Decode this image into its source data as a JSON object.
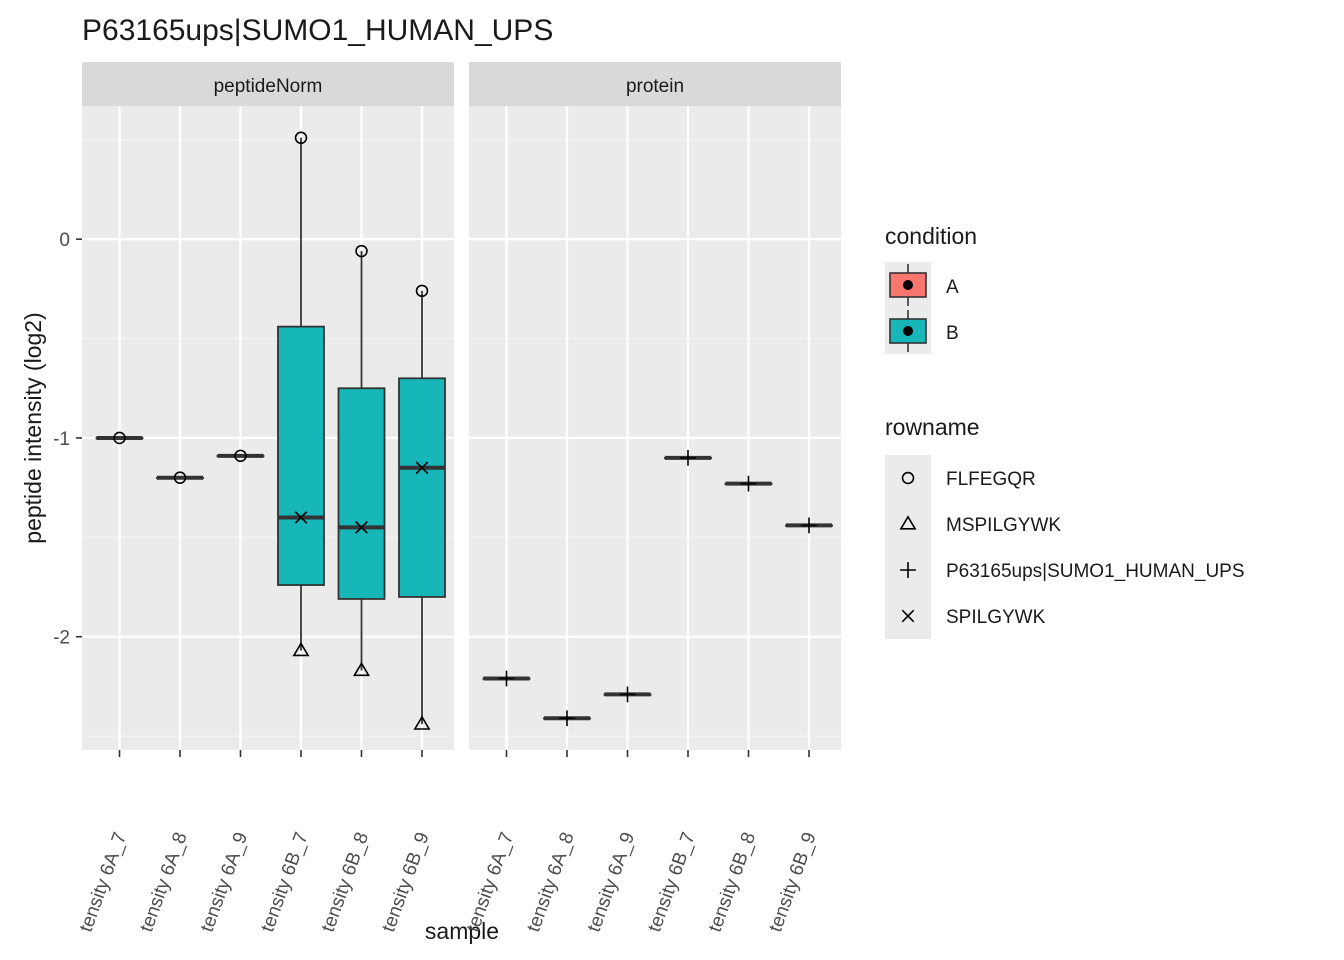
{
  "chart_data": {
    "type": "boxplot",
    "title": "P63165ups|SUMO1_HUMAN_UPS",
    "xlabel": "sample",
    "ylabel": "peptide intensity (log2)",
    "y_ticks": [
      {
        "value": 0,
        "label": "0"
      },
      {
        "value": -1,
        "label": "-1"
      },
      {
        "value": -2,
        "label": "-2"
      }
    ],
    "ylim": [
      -2.57,
      0.67
    ],
    "grid": true,
    "x_tick_labels": [
      "tensity 6A_7",
      "tensity 6A_8",
      "tensity 6A_9",
      "tensity 6B_7",
      "tensity 6B_8",
      "tensity 6B_9"
    ],
    "panels": [
      {
        "name": "peptideNorm",
        "boxes": [
          {
            "condition": "A",
            "q1": -1.0,
            "median": -1.0,
            "q3": -1.0,
            "whisker_low": -1.0,
            "whisker_high": -1.0
          },
          {
            "condition": "A",
            "q1": -1.2,
            "median": -1.2,
            "q3": -1.2,
            "whisker_low": -1.2,
            "whisker_high": -1.2
          },
          {
            "condition": "A",
            "q1": -1.09,
            "median": -1.09,
            "q3": -1.09,
            "whisker_low": -1.09,
            "whisker_high": -1.09
          },
          {
            "condition": "B",
            "q1": -1.74,
            "median": -1.4,
            "q3": -0.44,
            "whisker_low": -2.07,
            "whisker_high": 0.51
          },
          {
            "condition": "B",
            "q1": -1.81,
            "median": -1.45,
            "q3": -0.75,
            "whisker_low": -2.17,
            "whisker_high": -0.06
          },
          {
            "condition": "B",
            "q1": -1.8,
            "median": -1.15,
            "q3": -0.7,
            "whisker_low": -2.44,
            "whisker_high": -0.26
          }
        ],
        "points": [
          {
            "sample": 0,
            "rowname": "FLFEGQR",
            "y": -1.0
          },
          {
            "sample": 1,
            "rowname": "FLFEGQR",
            "y": -1.2
          },
          {
            "sample": 2,
            "rowname": "FLFEGQR",
            "y": -1.09
          },
          {
            "sample": 3,
            "rowname": "FLFEGQR",
            "y": 0.51
          },
          {
            "sample": 3,
            "rowname": "MSPILGYWK",
            "y": -2.07
          },
          {
            "sample": 3,
            "rowname": "SPILGYWK",
            "y": -1.4
          },
          {
            "sample": 4,
            "rowname": "FLFEGQR",
            "y": -0.06
          },
          {
            "sample": 4,
            "rowname": "MSPILGYWK",
            "y": -2.17
          },
          {
            "sample": 4,
            "rowname": "SPILGYWK",
            "y": -1.45
          },
          {
            "sample": 5,
            "rowname": "FLFEGQR",
            "y": -0.26
          },
          {
            "sample": 5,
            "rowname": "MSPILGYWK",
            "y": -2.44
          },
          {
            "sample": 5,
            "rowname": "SPILGYWK",
            "y": -1.15
          }
        ]
      },
      {
        "name": "protein",
        "boxes": [
          {
            "condition": "A",
            "q1": -2.21,
            "median": -2.21,
            "q3": -2.21,
            "whisker_low": -2.21,
            "whisker_high": -2.21
          },
          {
            "condition": "A",
            "q1": -2.41,
            "median": -2.41,
            "q3": -2.41,
            "whisker_low": -2.41,
            "whisker_high": -2.41
          },
          {
            "condition": "A",
            "q1": -2.29,
            "median": -2.29,
            "q3": -2.29,
            "whisker_low": -2.29,
            "whisker_high": -2.29
          },
          {
            "condition": "B",
            "q1": -1.1,
            "median": -1.1,
            "q3": -1.1,
            "whisker_low": -1.1,
            "whisker_high": -1.1
          },
          {
            "condition": "B",
            "q1": -1.23,
            "median": -1.23,
            "q3": -1.23,
            "whisker_low": -1.23,
            "whisker_high": -1.23
          },
          {
            "condition": "B",
            "q1": -1.44,
            "median": -1.44,
            "q3": -1.44,
            "whisker_low": -1.44,
            "whisker_high": -1.44
          }
        ],
        "points": [
          {
            "sample": 0,
            "rowname": "P63165ups|SUMO1_HUMAN_UPS",
            "y": -2.21
          },
          {
            "sample": 1,
            "rowname": "P63165ups|SUMO1_HUMAN_UPS",
            "y": -2.41
          },
          {
            "sample": 2,
            "rowname": "P63165ups|SUMO1_HUMAN_UPS",
            "y": -2.29
          },
          {
            "sample": 3,
            "rowname": "P63165ups|SUMO1_HUMAN_UPS",
            "y": -1.1
          },
          {
            "sample": 4,
            "rowname": "P63165ups|SUMO1_HUMAN_UPS",
            "y": -1.23
          },
          {
            "sample": 5,
            "rowname": "P63165ups|SUMO1_HUMAN_UPS",
            "y": -1.44
          }
        ]
      }
    ],
    "legends": [
      {
        "title": "condition",
        "entries": [
          {
            "label": "A",
            "color": "#F8766D"
          },
          {
            "label": "B",
            "color": "#00BFC4"
          }
        ]
      },
      {
        "title": "rowname",
        "entries": [
          {
            "label": "FLFEGQR",
            "shape": "circle"
          },
          {
            "label": "MSPILGYWK",
            "shape": "triangle"
          },
          {
            "label": "P63165ups|SUMO1_HUMAN_UPS",
            "shape": "plus"
          },
          {
            "label": "SPILGYWK",
            "shape": "cross"
          }
        ]
      }
    ],
    "legend_position": "right",
    "colors": {
      "A": "#F8766D",
      "B": "#17B6B9"
    }
  }
}
